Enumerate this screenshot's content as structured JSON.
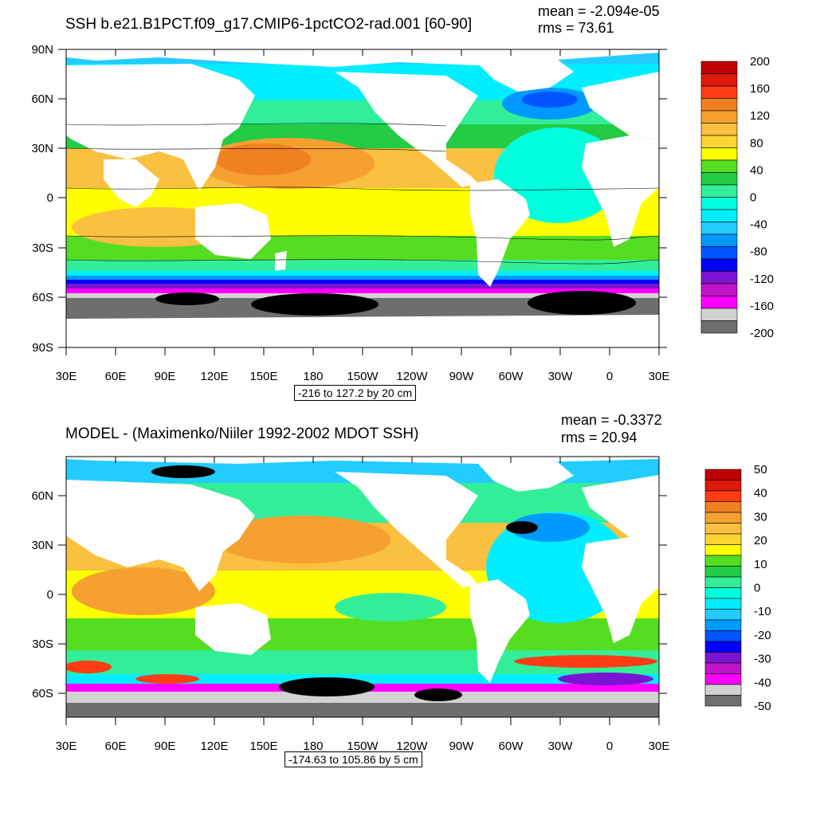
{
  "top": {
    "title": "SSH b.e21.B1PCT.f09_g17.CMIP6-1pctCO2-rad.001 [60-90]",
    "mean": "mean = -2.094e-05",
    "rms": "rms = 73.61",
    "range": "-216 to 127.2 by 20 cm",
    "ylabels": [
      "90N",
      "60N",
      "30N",
      "0",
      "30S",
      "60S",
      "90S"
    ],
    "xlabels": [
      "30E",
      "60E",
      "90E",
      "120E",
      "150E",
      "180",
      "150W",
      "120W",
      "90W",
      "60W",
      "30W",
      "0",
      "30E"
    ],
    "colorbar": {
      "labels": [
        "200",
        "160",
        "120",
        "80",
        "40",
        "0",
        "-40",
        "-80",
        "-120",
        "-160",
        "-200"
      ],
      "colors": [
        "#c00000",
        "#e01a0a",
        "#ff3c14",
        "#f08020",
        "#f5a030",
        "#fac040",
        "#fcd535",
        "#ffff00",
        "#55dd22",
        "#22cc44",
        "#33ee99",
        "#00ffdd",
        "#00eeff",
        "#22ccff",
        "#0099ff",
        "#0055ff",
        "#0000ff",
        "#7a14d2",
        "#c014c8",
        "#ff00ff",
        "#d2d2d2",
        "#6e6e6e"
      ]
    }
  },
  "bottom": {
    "title": "MODEL - (Maximenko/Niiler 1992-2002 MDOT SSH)",
    "mean": "mean = -0.3372",
    "rms": "rms = 20.94",
    "range": "-174.63 to 105.86 by 5 cm",
    "ylabels": [
      "60N",
      "30N",
      "0",
      "30S",
      "60S"
    ],
    "xlabels": [
      "30E",
      "60E",
      "90E",
      "120E",
      "150E",
      "180",
      "150W",
      "120W",
      "90W",
      "60W",
      "30W",
      "0",
      "30E"
    ],
    "colorbar": {
      "labels": [
        "50",
        "40",
        "30",
        "20",
        "10",
        "0",
        "-10",
        "-20",
        "-30",
        "-40",
        "-50"
      ],
      "colors": [
        "#c00000",
        "#e01a0a",
        "#ff3c14",
        "#f08020",
        "#f5a030",
        "#fac040",
        "#fcd535",
        "#ffff00",
        "#55dd22",
        "#22cc44",
        "#33ee99",
        "#00ffdd",
        "#00eeff",
        "#22ccff",
        "#0099ff",
        "#0055ff",
        "#0000ff",
        "#7a14d2",
        "#c014c8",
        "#ff00ff",
        "#d2d2d2",
        "#6e6e6e"
      ]
    }
  }
}
